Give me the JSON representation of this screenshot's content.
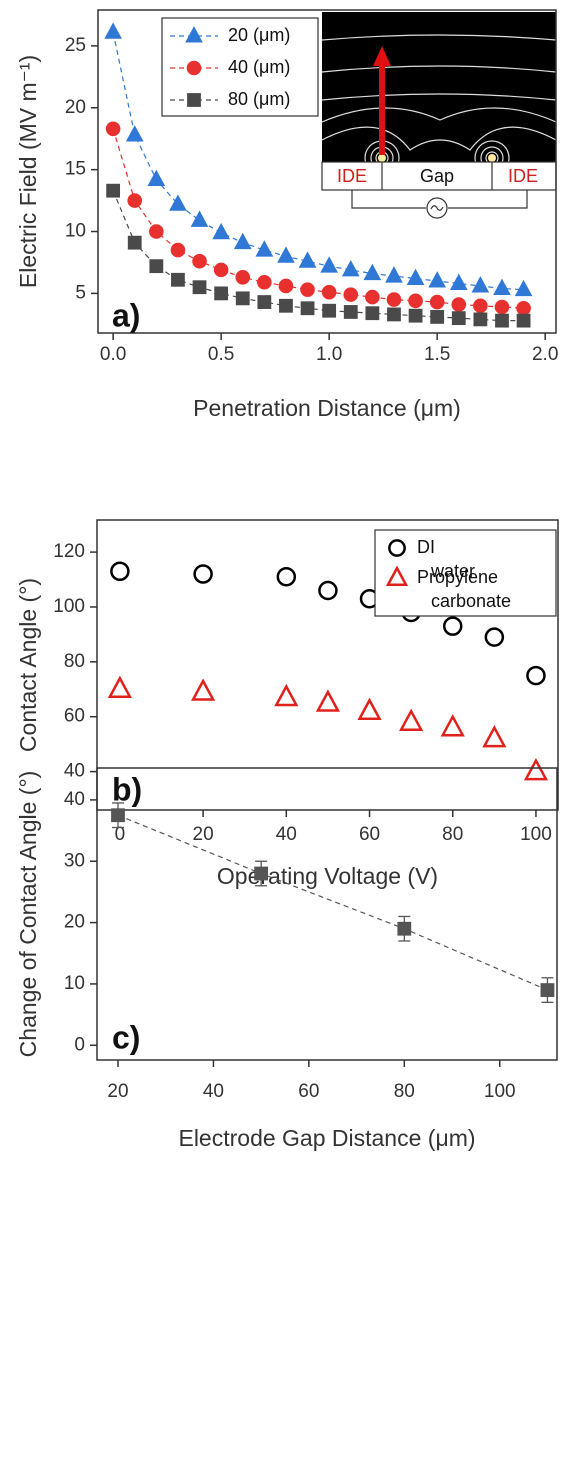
{
  "chart_data": [
    {
      "type": "line",
      "panel_label": "a)",
      "x_label": "Penetration Distance (μm)",
      "y_label": "Electric Field (MV m⁻¹)",
      "x": [
        0,
        0.1,
        0.2,
        0.3,
        0.4,
        0.5,
        0.6,
        0.7,
        0.8,
        0.9,
        1.0,
        1.1,
        1.2,
        1.3,
        1.4,
        1.5,
        1.6,
        1.7,
        1.8,
        1.9
      ],
      "series": [
        {
          "name": "20 (μm)",
          "color": "#2f78d6",
          "marker": "triangle",
          "filled": true,
          "values": [
            26.1,
            17.8,
            14.2,
            12.2,
            10.9,
            9.9,
            9.1,
            8.5,
            8.0,
            7.6,
            7.2,
            6.9,
            6.6,
            6.4,
            6.2,
            6.0,
            5.8,
            5.6,
            5.4,
            5.3
          ]
        },
        {
          "name": "40 (μm)",
          "color": "#e8302e",
          "marker": "circle",
          "filled": true,
          "values": [
            18.3,
            12.5,
            10.0,
            8.5,
            7.6,
            6.9,
            6.3,
            5.9,
            5.6,
            5.3,
            5.1,
            4.9,
            4.7,
            4.5,
            4.4,
            4.3,
            4.1,
            4.0,
            3.9,
            3.8
          ]
        },
        {
          "name": "80 (μm)",
          "color": "#4a4a4a",
          "marker": "square",
          "filled": true,
          "values": [
            13.3,
            9.1,
            7.2,
            6.1,
            5.5,
            5.0,
            4.6,
            4.3,
            4.0,
            3.8,
            3.6,
            3.5,
            3.4,
            3.3,
            3.2,
            3.1,
            3.0,
            2.9,
            2.8,
            2.8
          ]
        }
      ],
      "xlim": [
        -0.07,
        2.05
      ],
      "ylim": [
        1.8,
        27.9
      ],
      "xticks": [
        {
          "value": 0,
          "label": "0.0"
        },
        0.5,
        {
          "value": 1,
          "label": "1.0"
        },
        1.5,
        {
          "value": 2,
          "label": "2.0"
        }
      ],
      "yticks": [
        5,
        10,
        15,
        20,
        25
      ],
      "inset_labels": [
        "IDE",
        "Gap",
        "IDE"
      ]
    },
    {
      "type": "scatter",
      "panel_label": "b)",
      "x_label": "Operating Voltage (V)",
      "y_label": "Contact Angle (°)",
      "x": [
        0,
        20,
        40,
        50,
        60,
        70,
        80,
        90,
        100
      ],
      "series": [
        {
          "name": "DI water",
          "color": "#000000",
          "marker": "circle",
          "filled": false,
          "values": [
            113,
            112,
            111,
            106,
            103,
            98,
            93,
            89,
            75
          ]
        },
        {
          "name": "Propylene carbonate",
          "color": "#e0201b",
          "marker": "triangle",
          "filled": false,
          "values": [
            70,
            69,
            67,
            65,
            62,
            58,
            56,
            52,
            40
          ]
        }
      ],
      "xlim": [
        -5.5,
        105.3
      ],
      "ylim": [
        26,
        131.7
      ],
      "xticks": [
        0,
        20,
        40,
        60,
        80,
        100
      ],
      "yticks": [
        40,
        60,
        80,
        100,
        120
      ]
    },
    {
      "type": "line",
      "panel_label": "c)",
      "x_label": "Electrode Gap Distance (μm)",
      "y_label": "Change of Contact Angle (°)",
      "x": [
        20,
        50,
        80,
        110
      ],
      "series": [
        {
          "color": "#555555",
          "marker": "square",
          "filled": true,
          "values": [
            37.5,
            28,
            19,
            9
          ],
          "errors": [
            2,
            2,
            2,
            2
          ]
        }
      ],
      "xlim": [
        15.6,
        112
      ],
      "ylim": [
        -2.4,
        45.2
      ],
      "xticks": [
        20,
        40,
        60,
        80,
        100
      ],
      "yticks": [
        0,
        10,
        20,
        30,
        40
      ]
    }
  ]
}
